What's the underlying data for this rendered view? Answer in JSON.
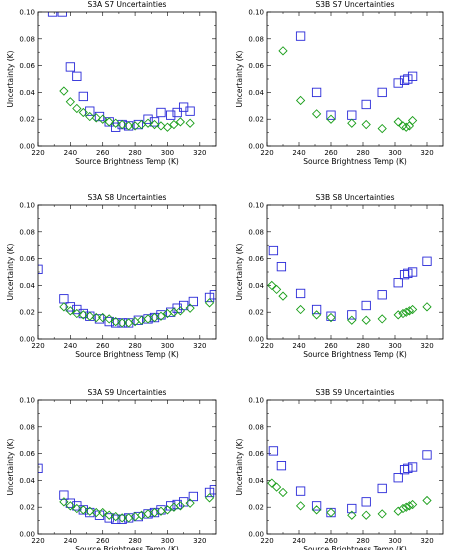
{
  "figure": {
    "colors": {
      "series_a": "#2a2ad8",
      "series_b": "#1a9e1a",
      "axis": "#000000"
    }
  },
  "chart_data": [
    {
      "type": "scatter",
      "title": "S3A S7 Uncertainties",
      "xlabel": "Source Brightness Temp (K)",
      "ylabel": "Uncertainty (K)",
      "xlim": [
        220,
        330
      ],
      "ylim": [
        0.0,
        0.1
      ],
      "xticks": [
        "220",
        "240",
        "260",
        "280",
        "300",
        "320"
      ],
      "yticks": [
        "0.00",
        "0.02",
        "0.04",
        "0.06",
        "0.08",
        "0.10"
      ],
      "series": [
        {
          "marker": "square",
          "x": [
            229,
            235,
            240,
            244,
            248,
            252,
            258,
            264,
            268,
            272,
            276,
            282,
            288,
            292,
            296,
            302,
            306,
            310,
            314
          ],
          "y": [
            0.1,
            0.1,
            0.059,
            0.052,
            0.037,
            0.026,
            0.022,
            0.018,
            0.014,
            0.016,
            0.015,
            0.016,
            0.02,
            0.018,
            0.025,
            0.023,
            0.025,
            0.029,
            0.026
          ]
        },
        {
          "marker": "diamond",
          "x": [
            236,
            240,
            244,
            248,
            252,
            256,
            260,
            264,
            268,
            272,
            276,
            280,
            284,
            288,
            292,
            296,
            300,
            304,
            308,
            314
          ],
          "y": [
            0.041,
            0.033,
            0.028,
            0.025,
            0.022,
            0.021,
            0.02,
            0.018,
            0.017,
            0.016,
            0.015,
            0.015,
            0.016,
            0.017,
            0.016,
            0.015,
            0.014,
            0.016,
            0.018,
            0.017
          ]
        }
      ]
    },
    {
      "type": "scatter",
      "title": "S3B S7 Uncertainties",
      "xlabel": "Source Brightness Temp (K)",
      "ylabel": "Uncertainty (K)",
      "xlim": [
        220,
        330
      ],
      "ylim": [
        0.0,
        0.1
      ],
      "xticks": [
        "220",
        "240",
        "260",
        "280",
        "300",
        "320"
      ],
      "yticks": [
        "0.00",
        "0.02",
        "0.04",
        "0.06",
        "0.08",
        "0.10"
      ],
      "series": [
        {
          "marker": "square",
          "x": [
            241,
            251,
            260,
            273,
            282,
            292,
            302,
            306,
            308,
            311
          ],
          "y": [
            0.082,
            0.04,
            0.023,
            0.023,
            0.031,
            0.04,
            0.047,
            0.049,
            0.05,
            0.052
          ]
        },
        {
          "marker": "diamond",
          "x": [
            230,
            241,
            251,
            260,
            273,
            282,
            292,
            302,
            305,
            307,
            309,
            311
          ],
          "y": [
            0.071,
            0.034,
            0.024,
            0.02,
            0.017,
            0.016,
            0.013,
            0.018,
            0.015,
            0.014,
            0.015,
            0.019
          ]
        }
      ]
    },
    {
      "type": "scatter",
      "title": "S3A S8 Uncertainties",
      "xlabel": "Source Brightness Temp (K)",
      "ylabel": "Uncertainty (K)",
      "xlim": [
        220,
        330
      ],
      "ylim": [
        0.0,
        0.1
      ],
      "xticks": [
        "220",
        "240",
        "260",
        "280",
        "300",
        "320"
      ],
      "yticks": [
        "0.00",
        "0.02",
        "0.04",
        "0.06",
        "0.08",
        "0.10"
      ],
      "series": [
        {
          "marker": "square",
          "x": [
            220,
            236,
            240,
            244,
            248,
            252,
            258,
            264,
            268,
            272,
            276,
            282,
            288,
            292,
            296,
            302,
            306,
            310,
            316,
            326,
            329
          ],
          "y": [
            0.052,
            0.03,
            0.024,
            0.022,
            0.019,
            0.017,
            0.015,
            0.013,
            0.012,
            0.012,
            0.012,
            0.014,
            0.015,
            0.016,
            0.018,
            0.02,
            0.023,
            0.025,
            0.028,
            0.031,
            0.033
          ]
        },
        {
          "marker": "diamond",
          "x": [
            236,
            240,
            244,
            248,
            252,
            256,
            260,
            264,
            268,
            272,
            276,
            280,
            284,
            288,
            292,
            296,
            300,
            304,
            308,
            314,
            326
          ],
          "y": [
            0.024,
            0.021,
            0.019,
            0.018,
            0.017,
            0.016,
            0.016,
            0.015,
            0.013,
            0.012,
            0.012,
            0.013,
            0.014,
            0.015,
            0.016,
            0.017,
            0.019,
            0.02,
            0.021,
            0.023,
            0.027
          ]
        }
      ]
    },
    {
      "type": "scatter",
      "title": "S3B S8 Uncertainties",
      "xlabel": "Source Brightness Temp (K)",
      "ylabel": "Uncertainty (K)",
      "xlim": [
        220,
        330
      ],
      "ylim": [
        0.0,
        0.1
      ],
      "xticks": [
        "220",
        "240",
        "260",
        "280",
        "300",
        "320"
      ],
      "yticks": [
        "0.00",
        "0.02",
        "0.04",
        "0.06",
        "0.08",
        "0.10"
      ],
      "series": [
        {
          "marker": "square",
          "x": [
            224,
            229,
            241,
            251,
            260,
            273,
            282,
            292,
            302,
            306,
            308,
            311,
            320
          ],
          "y": [
            0.066,
            0.054,
            0.034,
            0.022,
            0.017,
            0.018,
            0.025,
            0.033,
            0.042,
            0.048,
            0.049,
            0.05,
            0.058
          ]
        },
        {
          "marker": "diamond",
          "x": [
            223,
            226,
            230,
            241,
            251,
            260,
            273,
            282,
            292,
            302,
            305,
            307,
            309,
            311,
            320
          ],
          "y": [
            0.04,
            0.037,
            0.032,
            0.022,
            0.018,
            0.016,
            0.014,
            0.014,
            0.015,
            0.018,
            0.019,
            0.02,
            0.021,
            0.022,
            0.024
          ]
        }
      ]
    },
    {
      "type": "scatter",
      "title": "S3A S9 Uncertainties",
      "xlabel": "Source Brightness Temp (K)",
      "ylabel": "Uncertainty (K)",
      "xlim": [
        220,
        330
      ],
      "ylim": [
        0.0,
        0.1
      ],
      "xticks": [
        "220",
        "240",
        "260",
        "280",
        "300",
        "320"
      ],
      "yticks": [
        "0.00",
        "0.02",
        "0.04",
        "0.06",
        "0.08",
        "0.10"
      ],
      "series": [
        {
          "marker": "square",
          "x": [
            220,
            236,
            240,
            244,
            248,
            252,
            258,
            264,
            268,
            272,
            276,
            282,
            288,
            292,
            296,
            302,
            306,
            310,
            316,
            326,
            329
          ],
          "y": [
            0.049,
            0.029,
            0.023,
            0.021,
            0.018,
            0.016,
            0.014,
            0.012,
            0.011,
            0.011,
            0.012,
            0.013,
            0.015,
            0.016,
            0.018,
            0.021,
            0.022,
            0.024,
            0.028,
            0.031,
            0.033
          ]
        },
        {
          "marker": "diamond",
          "x": [
            236,
            240,
            244,
            248,
            252,
            256,
            260,
            264,
            268,
            272,
            276,
            280,
            284,
            288,
            292,
            296,
            300,
            304,
            308,
            314,
            326
          ],
          "y": [
            0.024,
            0.021,
            0.019,
            0.018,
            0.017,
            0.016,
            0.016,
            0.014,
            0.013,
            0.012,
            0.012,
            0.013,
            0.014,
            0.015,
            0.016,
            0.017,
            0.018,
            0.02,
            0.021,
            0.023,
            0.027
          ]
        }
      ]
    },
    {
      "type": "scatter",
      "title": "S3B S9 Uncertainties",
      "xlabel": "Source Brightness Temp (K)",
      "ylabel": "Uncertainty (K)",
      "xlim": [
        220,
        330
      ],
      "ylim": [
        0.0,
        0.1
      ],
      "xticks": [
        "220",
        "240",
        "260",
        "280",
        "300",
        "320"
      ],
      "yticks": [
        "0.00",
        "0.02",
        "0.04",
        "0.06",
        "0.08",
        "0.10"
      ],
      "series": [
        {
          "marker": "square",
          "x": [
            224,
            229,
            241,
            251,
            260,
            273,
            282,
            292,
            302,
            306,
            308,
            311,
            320
          ],
          "y": [
            0.062,
            0.051,
            0.032,
            0.021,
            0.016,
            0.019,
            0.024,
            0.034,
            0.042,
            0.048,
            0.049,
            0.05,
            0.059
          ]
        },
        {
          "marker": "diamond",
          "x": [
            223,
            226,
            230,
            241,
            251,
            260,
            273,
            282,
            292,
            302,
            305,
            307,
            309,
            311,
            320
          ],
          "y": [
            0.038,
            0.035,
            0.031,
            0.021,
            0.018,
            0.016,
            0.014,
            0.014,
            0.015,
            0.017,
            0.019,
            0.02,
            0.021,
            0.022,
            0.025
          ]
        }
      ]
    }
  ]
}
